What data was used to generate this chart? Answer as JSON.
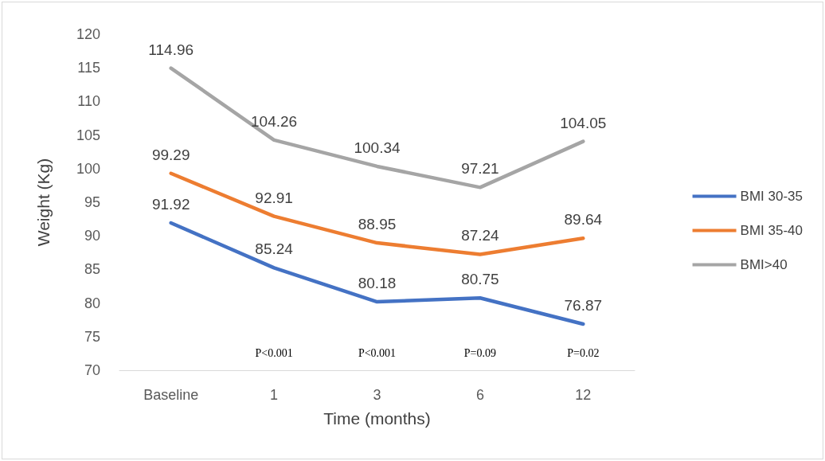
{
  "chart_data": {
    "type": "line",
    "xlabel": "Time (months)",
    "ylabel": "Weight (Kg)",
    "categories": [
      "Baseline",
      "1",
      "3",
      "6",
      "12"
    ],
    "series": [
      {
        "name": "BMI 30-35",
        "color": "#4472c4",
        "values": [
          91.92,
          85.24,
          80.18,
          80.75,
          76.87
        ]
      },
      {
        "name": "BMI 35-40",
        "color": "#ed7d31",
        "values": [
          99.29,
          92.91,
          88.95,
          87.24,
          89.64
        ]
      },
      {
        "name": "BMI>40",
        "color": "#a5a5a5",
        "values": [
          114.96,
          104.26,
          100.34,
          97.21,
          104.05
        ]
      }
    ],
    "ylim": [
      70,
      120
    ],
    "yticks": [
      70,
      75,
      80,
      85,
      90,
      95,
      100,
      105,
      110,
      115,
      120
    ],
    "grid": false,
    "legend": "right",
    "marker": "none",
    "line_style": "solid",
    "data_labels": true,
    "annotations": [
      "P<0.001",
      "P<0.001",
      "P=0.09",
      "P=0.02"
    ]
  }
}
